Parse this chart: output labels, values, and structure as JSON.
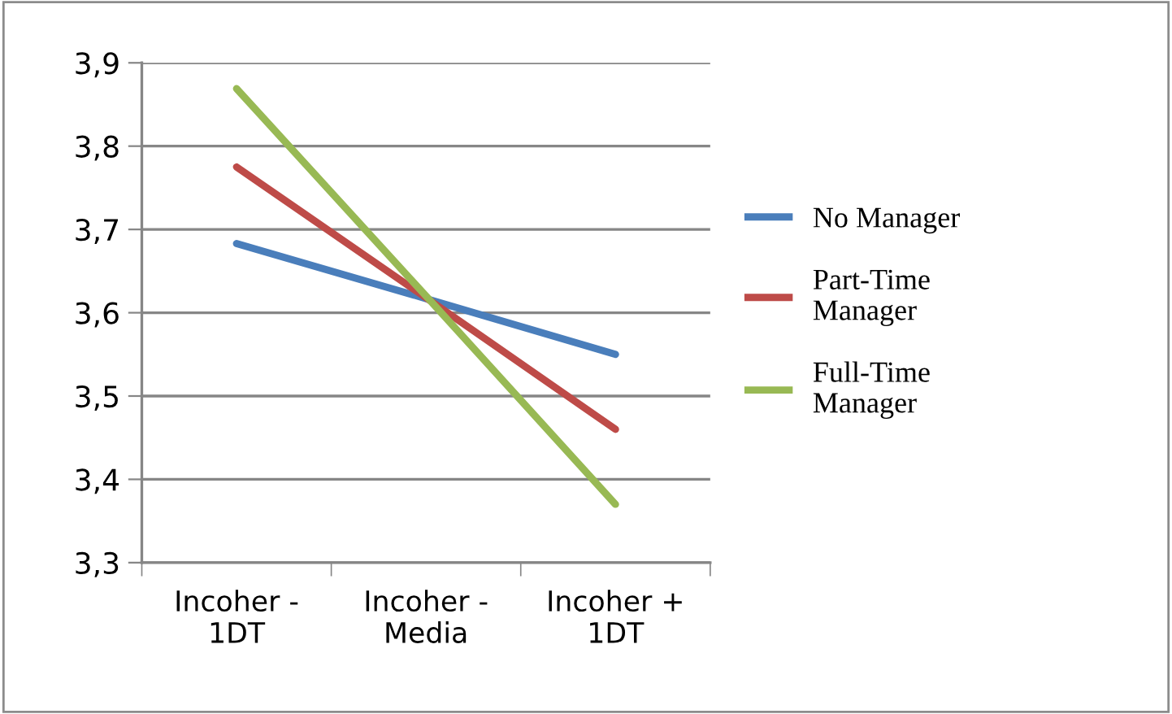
{
  "chart_data": {
    "type": "line",
    "categories": [
      "Incoher - 1DT",
      "Incoher - Media",
      "Incoher + 1DT"
    ],
    "series": [
      {
        "name": "No Manager",
        "color": "#4a7ebb",
        "values": [
          3.683,
          3.617,
          3.55
        ]
      },
      {
        "name": "Part-Time Manager",
        "color": "#be4b48",
        "values": [
          3.775,
          3.618,
          3.46
        ]
      },
      {
        "name": "Full-Time Manager",
        "color": "#98b954",
        "values": [
          3.869,
          3.62,
          3.37
        ]
      }
    ],
    "ylim": [
      3.3,
      3.9
    ],
    "yticks": [
      {
        "value": 3.3,
        "label": "3,3"
      },
      {
        "value": 3.4,
        "label": "3,4"
      },
      {
        "value": 3.5,
        "label": "3,5"
      },
      {
        "value": 3.6,
        "label": "3,6"
      },
      {
        "value": 3.7,
        "label": "3,7"
      },
      {
        "value": 3.8,
        "label": "3,8"
      },
      {
        "value": 3.9,
        "label": "3,9"
      }
    ],
    "grid": "y",
    "legend": "right",
    "marker": "none"
  }
}
